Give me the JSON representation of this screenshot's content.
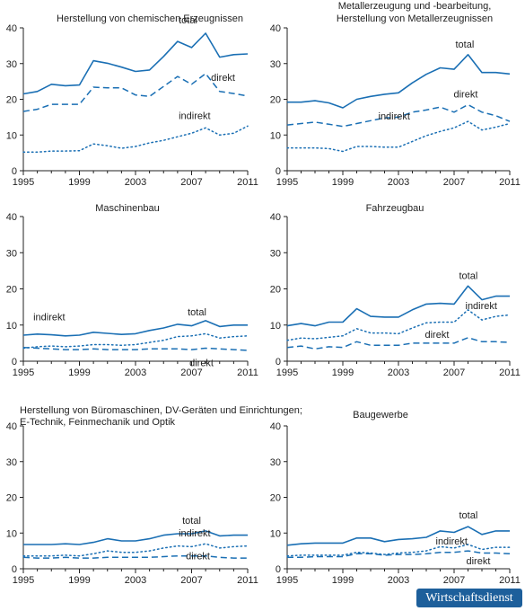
{
  "brand": "Wirtschaftsdienst",
  "style": {
    "line_color": "#1a6fb4",
    "axis_color": "#222222",
    "brand_color": "#1d5f9b"
  },
  "chart_data": [
    {
      "type": "line",
      "title": [
        "Herstellung von chemischen Erzeugnissen"
      ],
      "x": [
        1995,
        1996,
        1997,
        1998,
        1999,
        2000,
        2001,
        2002,
        2003,
        2004,
        2005,
        2006,
        2007,
        2008,
        2009,
        2010,
        2011
      ],
      "xticks": [
        1995,
        1999,
        2003,
        2007,
        2011
      ],
      "ylim": [
        0,
        40
      ],
      "yticks": [
        0,
        10,
        20,
        30,
        40
      ],
      "series": [
        {
          "name": "total",
          "style": "solid",
          "values": [
            21.5,
            22.2,
            24.2,
            23.8,
            24.0,
            30.8,
            30.1,
            29.0,
            27.8,
            28.2,
            32.0,
            36.2,
            34.5,
            38.5,
            31.8,
            32.5,
            32.7
          ]
        },
        {
          "name": "direkt",
          "style": "dashed",
          "values": [
            16.6,
            17.2,
            18.6,
            18.6,
            18.6,
            23.4,
            23.2,
            23.2,
            21.2,
            20.8,
            23.6,
            26.4,
            24.2,
            27.2,
            22.2,
            21.6,
            20.9
          ]
        },
        {
          "name": "indirekt",
          "style": "dotted",
          "values": [
            5.2,
            5.2,
            5.5,
            5.5,
            5.6,
            7.5,
            7.0,
            6.3,
            6.8,
            7.8,
            8.5,
            9.5,
            10.5,
            12.0,
            10.0,
            10.5,
            12.5
          ]
        }
      ]
    },
    {
      "type": "line",
      "title": [
        "Metallerzeugung und -bearbeitung,",
        "Herstellung von Metallerzeugnissen"
      ],
      "x": [
        1995,
        1996,
        1997,
        1998,
        1999,
        2000,
        2001,
        2002,
        2003,
        2004,
        2005,
        2006,
        2007,
        2008,
        2009,
        2010,
        2011
      ],
      "xticks": [
        1995,
        1999,
        2003,
        2007,
        2011
      ],
      "ylim": [
        0,
        40
      ],
      "yticks": [
        0,
        10,
        20,
        30,
        40
      ],
      "series": [
        {
          "name": "total",
          "style": "solid",
          "values": [
            19.2,
            19.2,
            19.6,
            19.0,
            17.6,
            20.0,
            20.8,
            21.4,
            21.8,
            24.6,
            27.0,
            28.8,
            28.4,
            32.5,
            27.5,
            27.5,
            27.1
          ]
        },
        {
          "name": "direkt",
          "style": "dashed",
          "values": [
            12.8,
            13.2,
            13.6,
            13.0,
            12.4,
            13.2,
            14.0,
            14.8,
            15.0,
            16.4,
            17.0,
            17.8,
            16.4,
            18.5,
            16.4,
            15.4,
            13.8
          ]
        },
        {
          "name": "indirekt",
          "style": "dotted",
          "values": [
            6.4,
            6.4,
            6.4,
            6.2,
            5.4,
            6.8,
            6.8,
            6.6,
            6.6,
            8.2,
            9.8,
            11.0,
            12.0,
            13.8,
            11.4,
            12.2,
            13.2
          ]
        }
      ]
    },
    {
      "type": "line",
      "title": [
        "Maschinenbau"
      ],
      "x": [
        1995,
        1996,
        1997,
        1998,
        1999,
        2000,
        2001,
        2002,
        2003,
        2004,
        2005,
        2006,
        2007,
        2008,
        2009,
        2010,
        2011
      ],
      "xticks": [
        1995,
        1999,
        2003,
        2007,
        2011
      ],
      "ylim": [
        0,
        40
      ],
      "yticks": [
        0,
        10,
        20,
        30,
        40
      ],
      "series": [
        {
          "name": "total",
          "style": "solid",
          "values": [
            7.2,
            7.5,
            7.3,
            7.0,
            7.2,
            8.0,
            7.7,
            7.4,
            7.6,
            8.5,
            9.2,
            10.2,
            9.8,
            11.2,
            9.6,
            10.0,
            10.0
          ]
        },
        {
          "name": "direkt",
          "style": "dashed",
          "values": [
            3.8,
            3.6,
            3.4,
            3.2,
            3.2,
            3.4,
            3.2,
            3.2,
            3.2,
            3.4,
            3.4,
            3.4,
            3.2,
            3.6,
            3.4,
            3.2,
            3.0
          ]
        },
        {
          "name": "indirekt",
          "style": "dotted",
          "values": [
            3.6,
            4.0,
            4.2,
            4.0,
            4.2,
            4.6,
            4.6,
            4.4,
            4.6,
            5.2,
            5.8,
            6.8,
            7.0,
            7.6,
            6.4,
            6.8,
            7.0
          ]
        }
      ]
    },
    {
      "type": "line",
      "title": [
        "Fahrzeugbau"
      ],
      "x": [
        1995,
        1996,
        1997,
        1998,
        1999,
        2000,
        2001,
        2002,
        2003,
        2004,
        2005,
        2006,
        2007,
        2008,
        2009,
        2010,
        2011
      ],
      "xticks": [
        1995,
        1999,
        2003,
        2007,
        2011
      ],
      "ylim": [
        0,
        40
      ],
      "yticks": [
        0,
        10,
        20,
        30,
        40
      ],
      "series": [
        {
          "name": "total",
          "style": "solid",
          "values": [
            9.8,
            10.4,
            9.8,
            10.8,
            10.8,
            14.5,
            12.4,
            12.2,
            12.2,
            14.2,
            15.8,
            16.0,
            15.8,
            20.8,
            17.0,
            18.0,
            18.0
          ]
        },
        {
          "name": "direkt",
          "style": "dashed",
          "values": [
            3.8,
            4.2,
            3.4,
            4.0,
            3.8,
            5.4,
            4.4,
            4.4,
            4.4,
            5.0,
            5.0,
            5.0,
            5.0,
            6.5,
            5.4,
            5.4,
            5.2
          ]
        },
        {
          "name": "indirekt",
          "style": "dotted",
          "values": [
            5.8,
            6.4,
            6.2,
            6.6,
            7.0,
            9.0,
            7.8,
            7.8,
            7.6,
            9.2,
            10.6,
            10.8,
            10.8,
            14.2,
            11.4,
            12.4,
            12.8
          ]
        }
      ]
    },
    {
      "type": "line",
      "title": [
        "Herstellung von Büromaschinen, DV-Geräten und Einrichtungen;",
        "E-Technik, Feinmechanik und Optik"
      ],
      "x": [
        1995,
        1996,
        1997,
        1998,
        1999,
        2000,
        2001,
        2002,
        2003,
        2004,
        2005,
        2006,
        2007,
        2008,
        2009,
        2010,
        2011
      ],
      "xticks": [
        1995,
        1999,
        2003,
        2007,
        2011
      ],
      "ylim": [
        0,
        40
      ],
      "yticks": [
        0,
        10,
        20,
        30,
        40
      ],
      "series": [
        {
          "name": "total",
          "style": "solid",
          "values": [
            6.8,
            6.8,
            6.8,
            7.0,
            6.8,
            7.4,
            8.4,
            7.8,
            7.8,
            8.4,
            9.4,
            9.8,
            9.8,
            10.6,
            9.2,
            9.4,
            9.4
          ]
        },
        {
          "name": "direkt",
          "style": "dashed",
          "values": [
            3.2,
            3.0,
            3.0,
            3.2,
            3.0,
            3.0,
            3.2,
            3.2,
            3.2,
            3.2,
            3.4,
            3.6,
            3.6,
            3.6,
            3.2,
            3.0,
            3.0
          ]
        },
        {
          "name": "indirekt",
          "style": "dotted",
          "values": [
            3.6,
            3.6,
            3.6,
            3.8,
            3.6,
            4.2,
            5.0,
            4.6,
            4.6,
            5.0,
            5.8,
            6.4,
            6.2,
            7.0,
            5.8,
            6.2,
            6.4
          ]
        }
      ]
    },
    {
      "type": "line",
      "title": [
        "Baugewerbe"
      ],
      "x": [
        1995,
        1996,
        1997,
        1998,
        1999,
        2000,
        2001,
        2002,
        2003,
        2004,
        2005,
        2006,
        2007,
        2008,
        2009,
        2010,
        2011
      ],
      "xticks": [
        1995,
        1999,
        2003,
        2007,
        2011
      ],
      "ylim": [
        0,
        40
      ],
      "yticks": [
        0,
        10,
        20,
        30,
        40
      ],
      "series": [
        {
          "name": "total",
          "style": "solid",
          "values": [
            6.6,
            7.0,
            7.2,
            7.2,
            7.2,
            8.6,
            8.6,
            7.6,
            8.2,
            8.4,
            8.8,
            10.6,
            10.2,
            11.8,
            9.6,
            10.6,
            10.6
          ]
        },
        {
          "name": "direkt",
          "style": "dashed",
          "values": [
            3.2,
            3.2,
            3.4,
            3.4,
            3.4,
            4.2,
            4.2,
            3.8,
            4.0,
            4.0,
            4.2,
            4.6,
            4.6,
            5.0,
            4.4,
            4.4,
            4.2
          ]
        },
        {
          "name": "indirekt",
          "style": "dotted",
          "values": [
            3.6,
            3.8,
            3.8,
            3.8,
            3.8,
            4.6,
            4.4,
            4.0,
            4.4,
            4.6,
            5.0,
            6.2,
            5.8,
            6.8,
            5.4,
            6.0,
            6.0
          ]
        }
      ]
    }
  ]
}
